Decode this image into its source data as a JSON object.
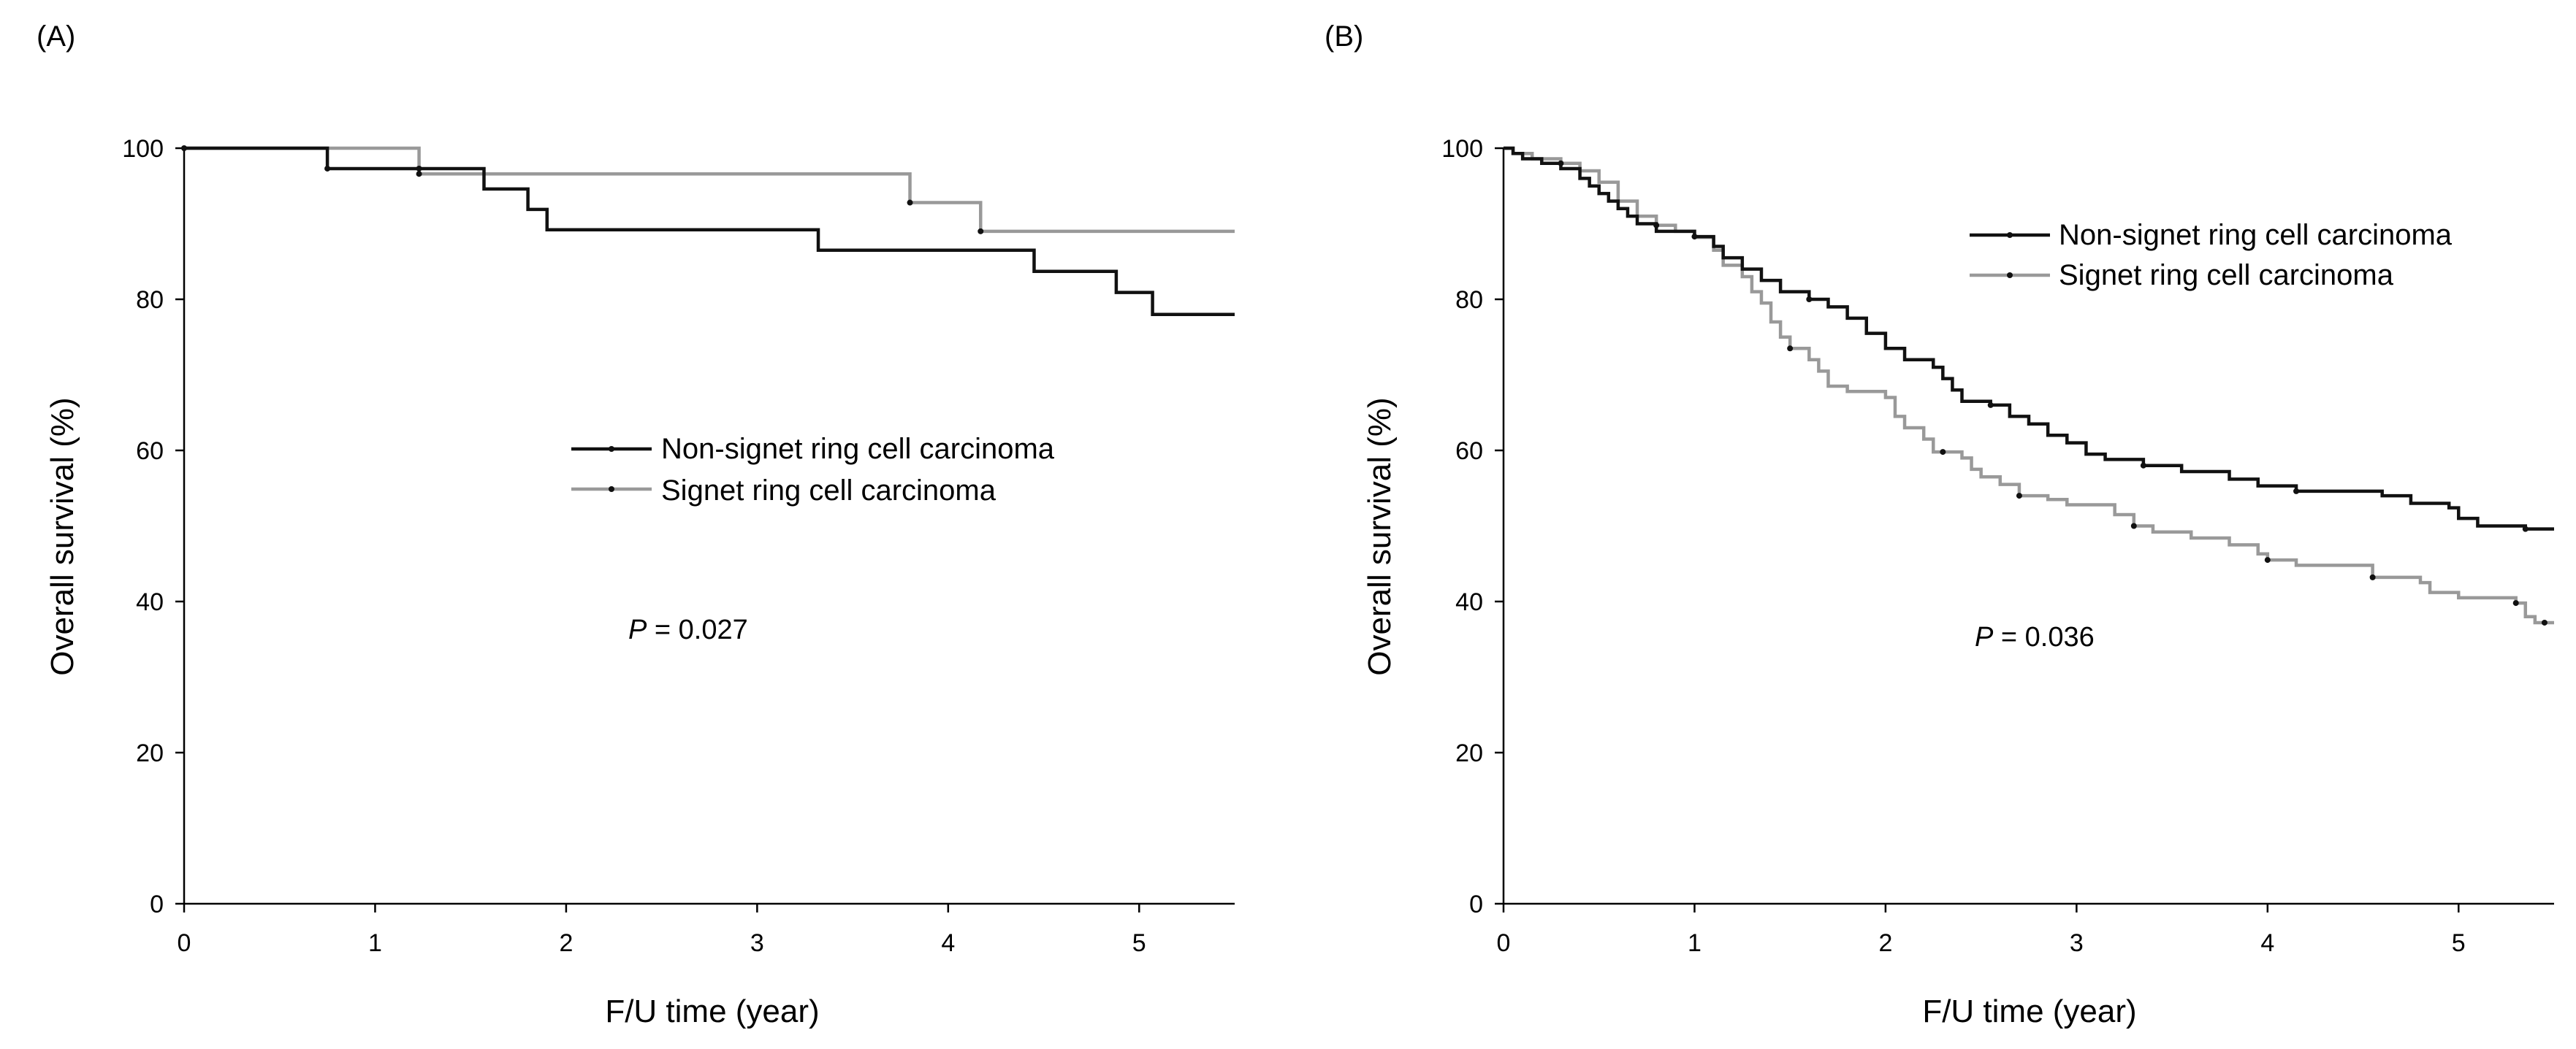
{
  "chart_data": [
    {
      "type": "line",
      "panel_label": "(A)",
      "xlabel": "F/U time (year)",
      "ylabel": "Overall survival (%)",
      "xlim": [
        0,
        5.5
      ],
      "ylim": [
        0,
        100
      ],
      "xticks": [
        0,
        1,
        2,
        3,
        4,
        5
      ],
      "yticks": [
        0,
        20,
        40,
        60,
        80,
        100
      ],
      "legend_position": "center",
      "annotation": {
        "prefix": "P",
        "text": " = 0.027"
      },
      "series": [
        {
          "name": "Non-signet ring cell carcinoma",
          "color": "#111111",
          "steps": [
            [
              0,
              100
            ],
            [
              0.75,
              97.3
            ],
            [
              1.57,
              94.6
            ],
            [
              1.8,
              91.9
            ],
            [
              1.9,
              89.2
            ],
            [
              3.32,
              86.5
            ],
            [
              4.45,
              83.7
            ],
            [
              4.88,
              80.9
            ],
            [
              5.07,
              78.0
            ],
            [
              5.5,
              78.0
            ]
          ],
          "censors": [
            [
              0.75,
              97.3
            ],
            [
              1.23,
              97.3
            ]
          ]
        },
        {
          "name": "Signet ring cell carcinoma",
          "color": "#999999",
          "steps": [
            [
              0,
              100
            ],
            [
              1.23,
              96.6
            ],
            [
              3.8,
              92.8
            ],
            [
              4.17,
              89.0
            ],
            [
              5.5,
              89.0
            ]
          ],
          "censors": [
            [
              0,
              100
            ],
            [
              1.23,
              96.6
            ],
            [
              3.8,
              92.8
            ],
            [
              4.17,
              89.0
            ]
          ]
        }
      ]
    },
    {
      "type": "line",
      "panel_label": "(B)",
      "xlabel": "F/U time (year)",
      "ylabel": "Overall survival (%)",
      "xlim": [
        0,
        5.5
      ],
      "ylim": [
        0,
        100
      ],
      "xticks": [
        0,
        1,
        2,
        3,
        4,
        5
      ],
      "yticks": [
        0,
        20,
        40,
        60,
        80,
        100
      ],
      "legend_position": "top-right",
      "annotation": {
        "prefix": "P",
        "text": " = 0.036"
      },
      "series": [
        {
          "name": "Non-signet ring cell carcinoma",
          "color": "#111111",
          "steps": [
            [
              0,
              100
            ],
            [
              0.05,
              99.3
            ],
            [
              0.1,
              98.6
            ],
            [
              0.2,
              98.0
            ],
            [
              0.3,
              97.3
            ],
            [
              0.4,
              96.0
            ],
            [
              0.45,
              95.0
            ],
            [
              0.5,
              94.0
            ],
            [
              0.55,
              93.0
            ],
            [
              0.6,
              92.0
            ],
            [
              0.65,
              91.0
            ],
            [
              0.7,
              90.0
            ],
            [
              0.8,
              89.0
            ],
            [
              1.0,
              88.3
            ],
            [
              1.1,
              87.0
            ],
            [
              1.15,
              85.5
            ],
            [
              1.25,
              84.0
            ],
            [
              1.35,
              82.5
            ],
            [
              1.45,
              81.0
            ],
            [
              1.6,
              80.0
            ],
            [
              1.7,
              79.0
            ],
            [
              1.8,
              77.5
            ],
            [
              1.9,
              75.5
            ],
            [
              2.0,
              73.5
            ],
            [
              2.1,
              72.0
            ],
            [
              2.25,
              71.0
            ],
            [
              2.3,
              69.5
            ],
            [
              2.35,
              68.0
            ],
            [
              2.4,
              66.5
            ],
            [
              2.55,
              66.0
            ],
            [
              2.65,
              64.5
            ],
            [
              2.75,
              63.5
            ],
            [
              2.85,
              62.0
            ],
            [
              2.95,
              61.0
            ],
            [
              3.05,
              59.5
            ],
            [
              3.15,
              58.8
            ],
            [
              3.35,
              58.0
            ],
            [
              3.55,
              57.2
            ],
            [
              3.8,
              56.2
            ],
            [
              3.95,
              55.3
            ],
            [
              4.15,
              54.6
            ],
            [
              4.6,
              54.0
            ],
            [
              4.75,
              53.0
            ],
            [
              4.95,
              52.4
            ],
            [
              5.0,
              51.0
            ],
            [
              5.1,
              50.0
            ],
            [
              5.35,
              49.6
            ],
            [
              5.5,
              49.6
            ]
          ],
          "censors": [
            [
              1.0,
              88.3
            ],
            [
              1.6,
              80.0
            ],
            [
              2.55,
              66.0
            ],
            [
              3.35,
              58.0
            ],
            [
              4.15,
              54.6
            ],
            [
              5.35,
              49.6
            ]
          ]
        },
        {
          "name": "Signet ring cell carcinoma",
          "color": "#999999",
          "steps": [
            [
              0,
              100
            ],
            [
              0.05,
              99.3
            ],
            [
              0.15,
              98.6
            ],
            [
              0.3,
              98.0
            ],
            [
              0.4,
              97.0
            ],
            [
              0.5,
              95.5
            ],
            [
              0.6,
              93.0
            ],
            [
              0.7,
              91.0
            ],
            [
              0.8,
              89.8
            ],
            [
              0.9,
              89.0
            ],
            [
              1.0,
              88.2
            ],
            [
              1.1,
              86.5
            ],
            [
              1.15,
              84.5
            ],
            [
              1.25,
              83.0
            ],
            [
              1.3,
              81.0
            ],
            [
              1.35,
              79.5
            ],
            [
              1.4,
              77.0
            ],
            [
              1.45,
              75.0
            ],
            [
              1.5,
              73.5
            ],
            [
              1.6,
              72.0
            ],
            [
              1.65,
              70.5
            ],
            [
              1.7,
              68.5
            ],
            [
              1.8,
              67.8
            ],
            [
              2.0,
              67.0
            ],
            [
              2.05,
              64.5
            ],
            [
              2.1,
              63.0
            ],
            [
              2.2,
              61.5
            ],
            [
              2.25,
              59.8
            ],
            [
              2.4,
              59.0
            ],
            [
              2.45,
              57.5
            ],
            [
              2.5,
              56.5
            ],
            [
              2.6,
              55.5
            ],
            [
              2.7,
              54.0
            ],
            [
              2.85,
              53.5
            ],
            [
              2.95,
              52.8
            ],
            [
              3.2,
              51.5
            ],
            [
              3.3,
              50.0
            ],
            [
              3.4,
              49.2
            ],
            [
              3.6,
              48.4
            ],
            [
              3.8,
              47.5
            ],
            [
              3.95,
              46.3
            ],
            [
              4.0,
              45.5
            ],
            [
              4.15,
              44.8
            ],
            [
              4.55,
              43.2
            ],
            [
              4.8,
              42.5
            ],
            [
              4.85,
              41.2
            ],
            [
              5.0,
              40.5
            ],
            [
              5.3,
              39.8
            ],
            [
              5.35,
              38.0
            ],
            [
              5.4,
              37.2
            ],
            [
              5.5,
              37.2
            ]
          ],
          "censors": [
            [
              0.3,
              98.0
            ],
            [
              0.8,
              89.8
            ],
            [
              1.5,
              73.5
            ],
            [
              2.3,
              59.8
            ],
            [
              2.7,
              54.0
            ],
            [
              3.3,
              50.0
            ],
            [
              4.0,
              45.5
            ],
            [
              4.55,
              43.2
            ],
            [
              5.3,
              39.8
            ],
            [
              5.45,
              37.2
            ]
          ]
        }
      ]
    }
  ]
}
